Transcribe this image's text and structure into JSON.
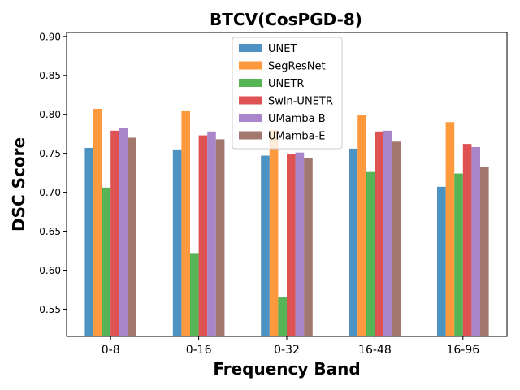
{
  "chart_data": {
    "type": "bar",
    "title": "BTCV(CosPGD-8)",
    "xlabel": "Frequency Band",
    "ylabel": "DSC Score",
    "categories": [
      "0-8",
      "0-16",
      "0-32",
      "16-48",
      "16-96"
    ],
    "ylim": [
      0.515,
      0.905
    ],
    "yticks": [
      0.55,
      0.6,
      0.65,
      0.7,
      0.75,
      0.8,
      0.85,
      0.9
    ],
    "ytick_labels": [
      "0.55",
      "0.60",
      "0.65",
      "0.70",
      "0.75",
      "0.80",
      "0.85",
      "0.90"
    ],
    "legend_position": "top-center",
    "grid": false,
    "series": [
      {
        "name": "UNET",
        "color": "#1f77b4",
        "values": [
          0.757,
          0.755,
          0.747,
          0.756,
          0.707
        ]
      },
      {
        "name": "SegResNet",
        "color": "#ff7f0e",
        "values": [
          0.807,
          0.805,
          0.78,
          0.799,
          0.79
        ]
      },
      {
        "name": "UNETR",
        "color": "#2ca02c",
        "values": [
          0.706,
          0.622,
          0.565,
          0.726,
          0.724
        ]
      },
      {
        "name": "Swin-UNETR",
        "color": "#d62728",
        "values": [
          0.779,
          0.773,
          0.749,
          0.778,
          0.762
        ]
      },
      {
        "name": "UMamba-B",
        "color": "#9467bd",
        "values": [
          0.782,
          0.778,
          0.751,
          0.779,
          0.758
        ]
      },
      {
        "name": "UMamba-E",
        "color": "#8c564b",
        "values": [
          0.77,
          0.768,
          0.744,
          0.765,
          0.732
        ]
      }
    ]
  }
}
